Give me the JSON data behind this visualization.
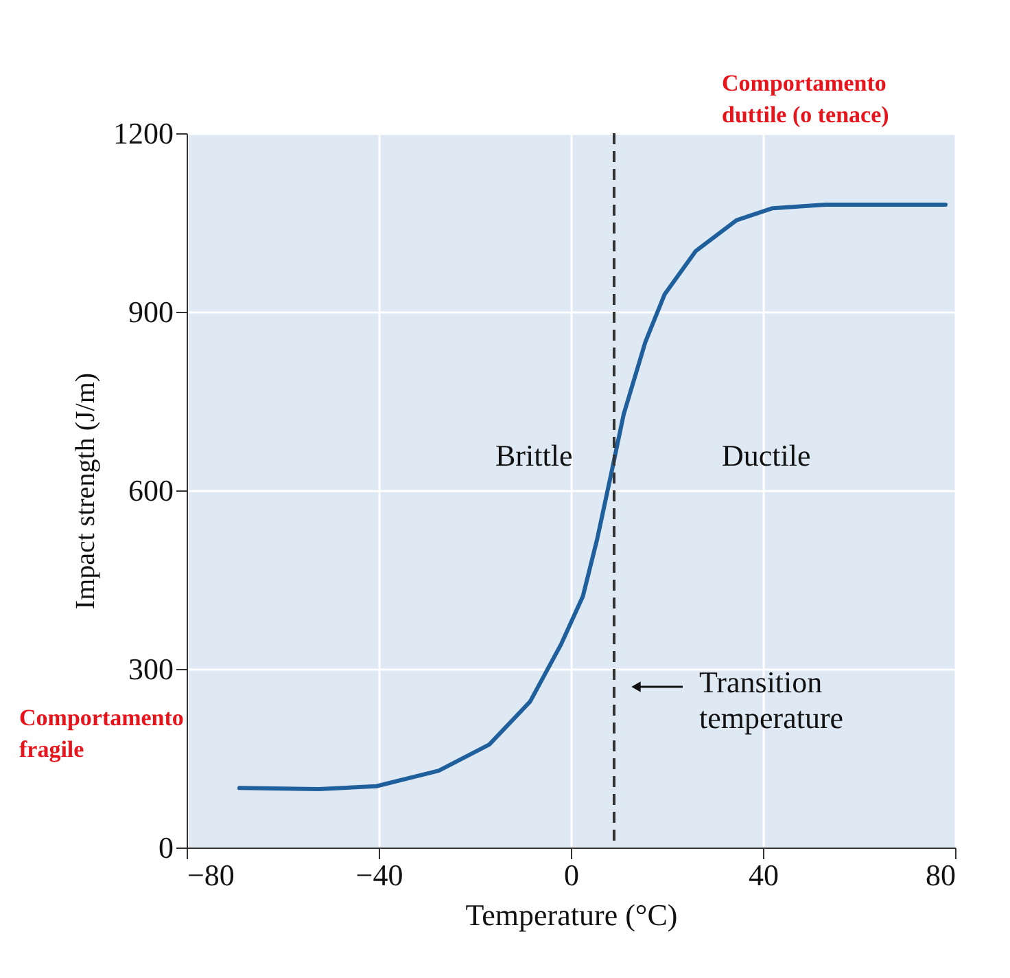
{
  "chart_data": {
    "type": "line",
    "x": [
      -69,
      -52.5,
      -40.5,
      -27.5,
      -17,
      -8.5,
      -2,
      2.5,
      5.5,
      8.5,
      11,
      15.5,
      19.5,
      26,
      34.5,
      42,
      53,
      78
    ],
    "series": [
      {
        "color": "#1f5f9c",
        "values": [
          100,
          98,
          103,
          129,
          173,
          245,
          342,
          422,
          519,
          632,
          728,
          849,
          929,
          1002,
          1054,
          1074,
          1080,
          1080
        ]
      }
    ],
    "xlabel": "Temperature (°C)",
    "ylabel": "Impact strength (J/m)",
    "xlim": [
      -80,
      80
    ],
    "xticks": [
      -80,
      -40,
      0,
      40,
      80
    ],
    "ylim": [
      0,
      1200
    ],
    "yticks": [
      0,
      300,
      600,
      900,
      {
        "value": 1200,
        "label": "1200"
      }
    ],
    "grid": true,
    "line_style": "solid",
    "marker": "none",
    "ref_lines": [
      {
        "axis": "x",
        "value": 9,
        "label": "Transition temperature",
        "line_style": "dashed",
        "color": "#333333"
      }
    ],
    "annotations": [
      "Brittle",
      "Ductile",
      "Comportamento\nfragile",
      "Comportamento\nduttile (o tenace)"
    ]
  }
}
